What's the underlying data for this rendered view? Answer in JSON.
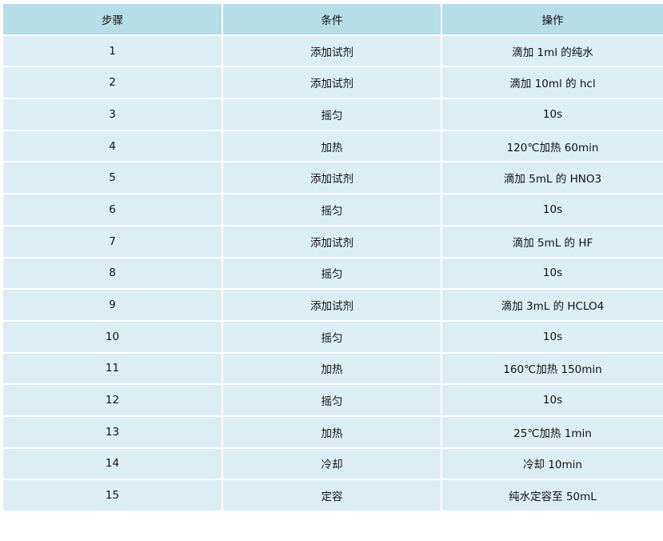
{
  "table": {
    "headers": [
      "步骤",
      "条件",
      "操作"
    ],
    "rows": [
      [
        "1",
        "添加试剂",
        "滴加 1ml 的纯水"
      ],
      [
        "2",
        "添加试剂",
        "滴加 10ml 的 hcl"
      ],
      [
        "3",
        "摇匀",
        "10s"
      ],
      [
        "4",
        "加热",
        "120℃加热 60min"
      ],
      [
        "5",
        "添加试剂",
        "滴加 5mL 的 HNO3"
      ],
      [
        "6",
        "摇匀",
        "10s"
      ],
      [
        "7",
        "添加试剂",
        "滴加 5mL 的 HF"
      ],
      [
        "8",
        "摇匀",
        "10s"
      ],
      [
        "9",
        "添加试剂",
        "滴加 3mL 的 HCLO4"
      ],
      [
        "10",
        "摇匀",
        "10s"
      ],
      [
        "11",
        "加热",
        "160℃加热 150min"
      ],
      [
        "12",
        "摇匀",
        "10s"
      ],
      [
        "13",
        "加热",
        "25℃加热 1min"
      ],
      [
        "14",
        "冷却",
        "冷却 10min"
      ],
      [
        "15",
        "定容",
        "纯水定容至 50mL"
      ]
    ]
  },
  "colors": {
    "header_bg": "#b7dde8",
    "row_bg": "#dbeef4",
    "border": "#ffffff"
  }
}
